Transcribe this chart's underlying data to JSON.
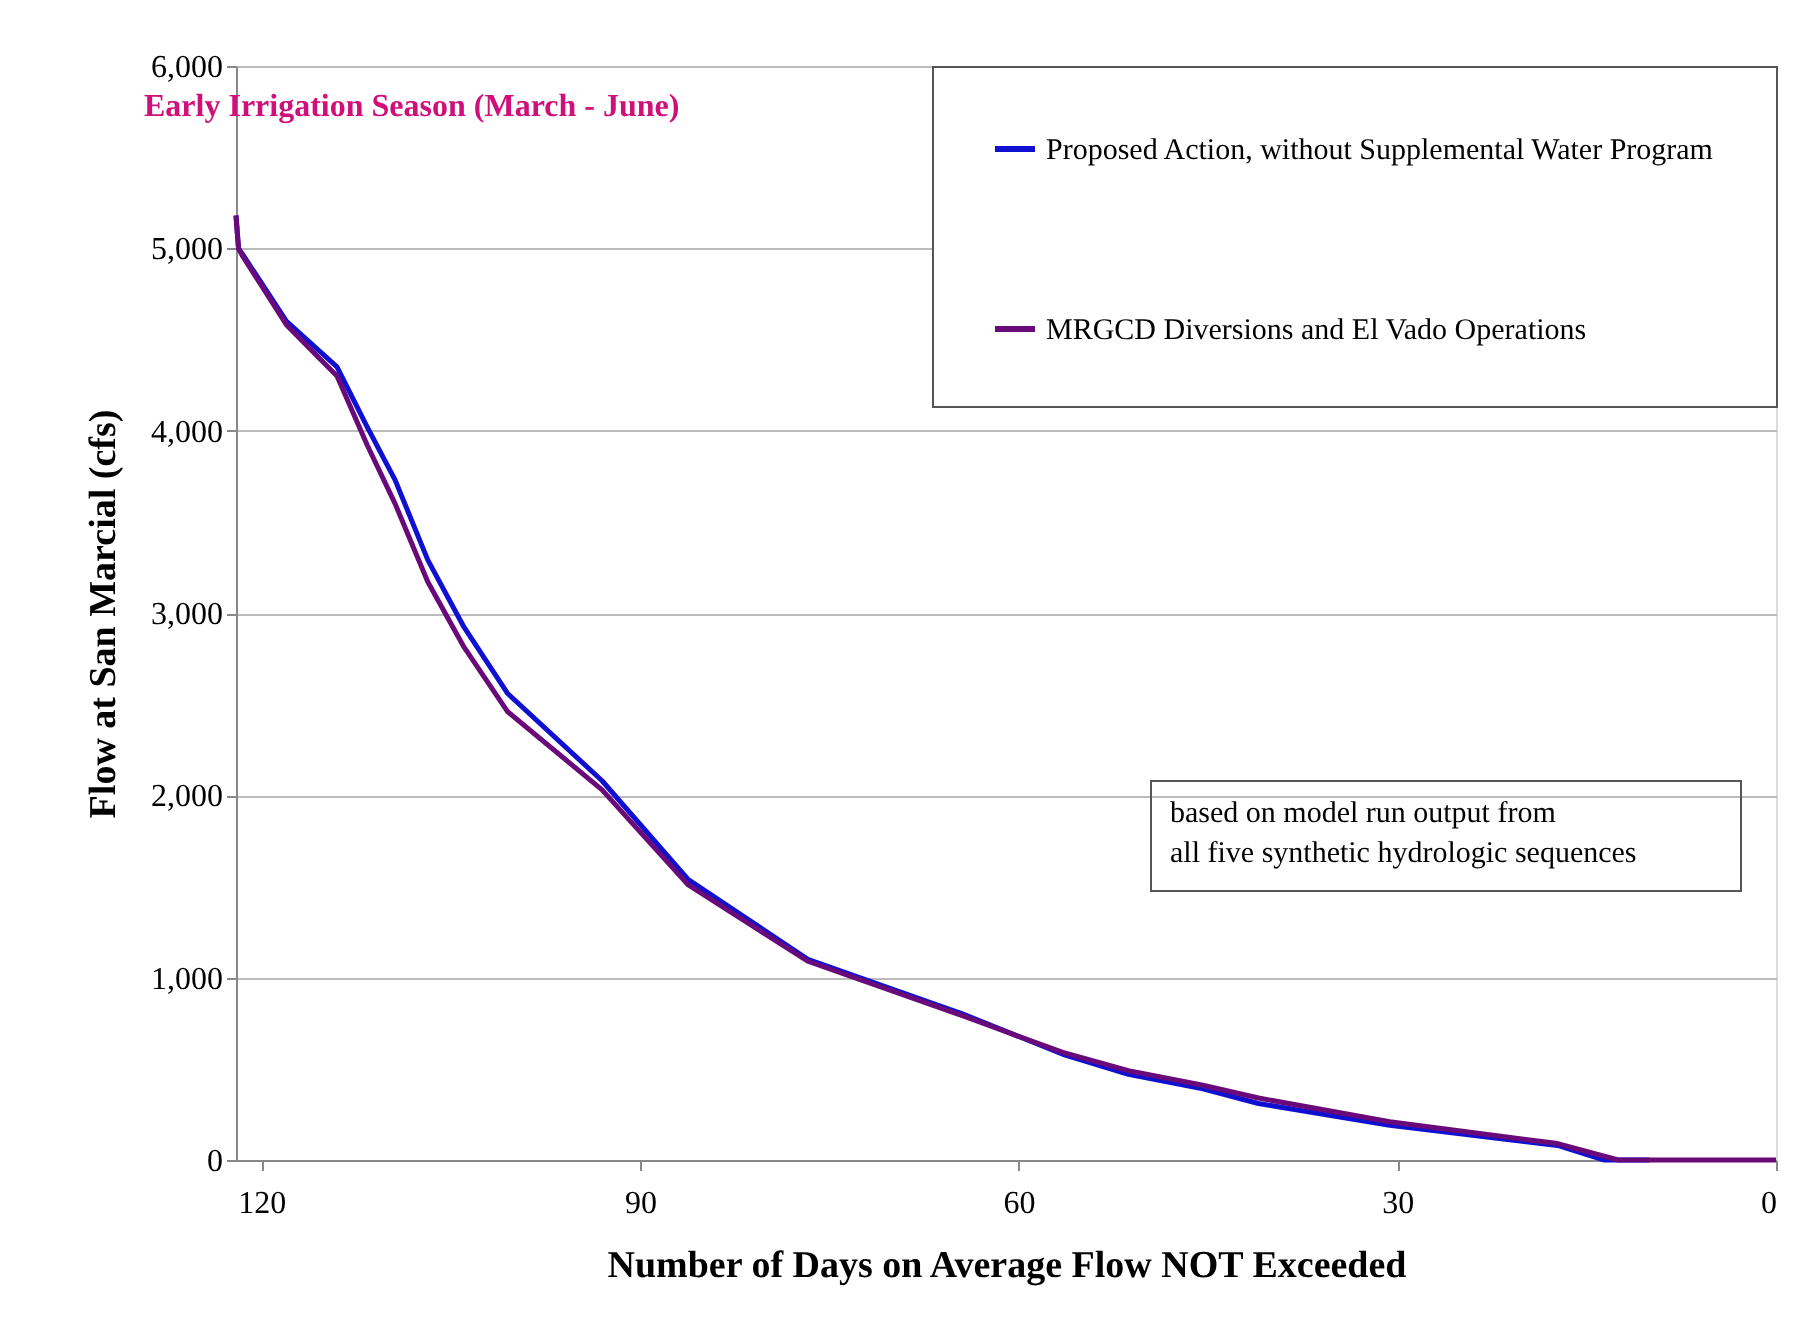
{
  "chart_data": {
    "type": "line",
    "title": "Early Irrigation Season (March - June)",
    "xlabel": "Number of Days on Average Flow NOT Exceeded",
    "ylabel": "Flow at San Marcial (cfs)",
    "xlim": [
      122,
      0
    ],
    "xticks": [
      120,
      90,
      60,
      30,
      0
    ],
    "ylim": [
      0,
      6000
    ],
    "yticks": [
      0,
      {
        "value": 1000,
        "label": "1,000"
      },
      {
        "value": 2000,
        "label": "2,000"
      },
      {
        "value": 3000,
        "label": "3,000"
      },
      {
        "value": 4000,
        "label": "4,000"
      },
      {
        "value": 5000,
        "label": "5,000"
      },
      {
        "value": 6000,
        "label": "6,000"
      }
    ],
    "grid": "y",
    "legend": "top right",
    "marker": "none",
    "line_style": "solid",
    "annotations": [
      "based on model run output from all five synthetic hydrologic sequences"
    ],
    "series": [
      {
        "name": "Proposed Action, without Supplemental Water Program",
        "color": "#1010d0",
        "x": [
          122,
          121.8,
          121.5,
          118,
          114,
          111.6,
          109.4,
          106.8,
          104,
          100.5,
          93,
          86.2,
          76.7,
          64.4,
          56.5,
          51.3,
          45.4,
          41,
          30.6,
          17.3,
          13.6,
          10
        ],
        "values": [
          5180,
          5000,
          4970,
          4600,
          4350,
          4020,
          3730,
          3290,
          2930,
          2560,
          2080,
          1540,
          1100,
          800,
          580,
          470,
          390,
          310,
          190,
          80,
          0,
          0
        ]
      },
      {
        "name": "MRGCD Diversions and El Vado Operations",
        "color": "#6a0a7a",
        "x": [
          122,
          121.8,
          121.5,
          118,
          114,
          111.6,
          109.4,
          106.8,
          104,
          100.5,
          93,
          86.2,
          76.7,
          64.4,
          56.5,
          51.3,
          45.4,
          41,
          30.6,
          17.3,
          12.5,
          10,
          5,
          0
        ],
        "values": [
          5180,
          5000,
          4960,
          4580,
          4300,
          3920,
          3600,
          3170,
          2820,
          2460,
          2030,
          1510,
          1090,
          790,
          590,
          490,
          410,
          340,
          210,
          90,
          0,
          0,
          0,
          0
        ]
      }
    ]
  }
}
